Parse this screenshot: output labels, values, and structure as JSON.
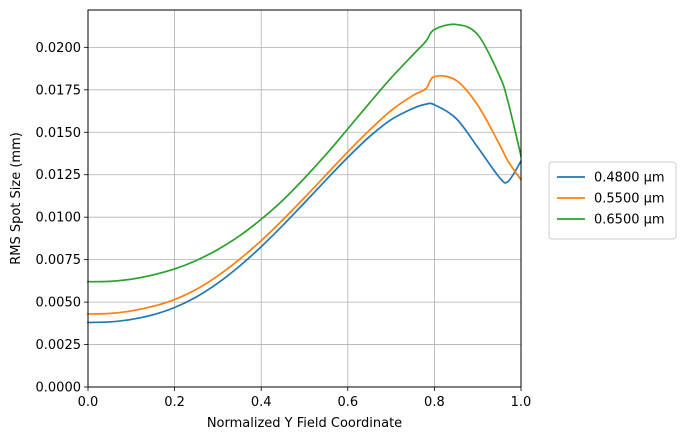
{
  "chart_data": {
    "type": "line",
    "title": "",
    "xlabel": "Normalized Y Field Coordinate",
    "ylabel": "RMS Spot Size (mm)",
    "xlim": [
      0,
      1
    ],
    "ylim": [
      0,
      0.0222
    ],
    "xticks": [
      0.0,
      0.2,
      0.4,
      0.6,
      0.8,
      1.0
    ],
    "xtick_labels": [
      "0.0",
      "0.2",
      "0.4",
      "0.6",
      "0.8",
      "1.0"
    ],
    "yticks": [
      0,
      0.0025,
      0.005,
      0.0075,
      0.01,
      0.0125,
      0.015,
      0.0175,
      0.02
    ],
    "ytick_labels": [
      "0.0000",
      "0.0025",
      "0.0050",
      "0.0075",
      "0.0100",
      "0.0125",
      "0.0150",
      "0.0175",
      "0.0200"
    ],
    "grid": true,
    "legend_position": "right, outside plot",
    "x": [
      0.0,
      0.05,
      0.1,
      0.15,
      0.2,
      0.25,
      0.3,
      0.35,
      0.4,
      0.45,
      0.5,
      0.55,
      0.6,
      0.65,
      0.7,
      0.75,
      0.78,
      0.8,
      0.85,
      0.9,
      0.95,
      0.97,
      1.0
    ],
    "series": [
      {
        "name": "0.4800 µm",
        "color": "#1f77b4",
        "values": [
          0.0038,
          0.00383,
          0.00398,
          0.00425,
          0.00468,
          0.0053,
          0.00612,
          0.00712,
          0.00826,
          0.00952,
          0.01085,
          0.0122,
          0.01352,
          0.01474,
          0.01574,
          0.0164,
          0.01665,
          0.01662,
          0.01582,
          0.01412,
          0.01235,
          0.0121,
          0.0133
        ]
      },
      {
        "name": "0.5500 µm",
        "color": "#ff7f0e",
        "values": [
          0.0043,
          0.00433,
          0.00448,
          0.00475,
          0.00515,
          0.00575,
          0.00655,
          0.00752,
          0.00862,
          0.00985,
          0.01115,
          0.0125,
          0.01385,
          0.01512,
          0.01628,
          0.01716,
          0.01756,
          0.01828,
          0.01806,
          0.0166,
          0.0143,
          0.0133,
          0.0122
        ]
      },
      {
        "name": "0.6500 µm",
        "color": "#2ca02c",
        "values": [
          0.0062,
          0.00622,
          0.00635,
          0.0066,
          0.00695,
          0.00745,
          0.0081,
          0.0089,
          0.00988,
          0.011,
          0.0123,
          0.0137,
          0.0152,
          0.01672,
          0.0182,
          0.01955,
          0.02035,
          0.02105,
          0.02135,
          0.02075,
          0.01835,
          0.0168,
          0.0136
        ]
      }
    ]
  }
}
